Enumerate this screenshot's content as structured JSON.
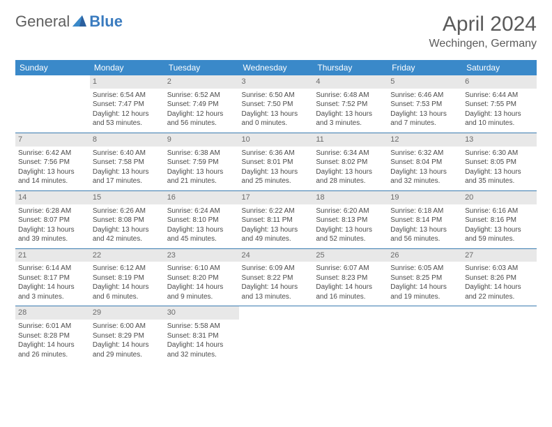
{
  "logo": {
    "text1": "General",
    "text2": "Blue"
  },
  "title": "April 2024",
  "location": "Wechingen, Germany",
  "colors": {
    "headerBg": "#3a89c9",
    "headerText": "#ffffff",
    "dayBg": "#e8e8e8",
    "rule": "#3a7bb0",
    "text": "#4a4a4a"
  },
  "dayHeaders": [
    "Sunday",
    "Monday",
    "Tuesday",
    "Wednesday",
    "Thursday",
    "Friday",
    "Saturday"
  ],
  "weeks": [
    [
      {
        "n": "",
        "sunrise": "",
        "sunset": "",
        "daylight1": "",
        "daylight2": ""
      },
      {
        "n": "1",
        "sunrise": "Sunrise: 6:54 AM",
        "sunset": "Sunset: 7:47 PM",
        "daylight1": "Daylight: 12 hours",
        "daylight2": "and 53 minutes."
      },
      {
        "n": "2",
        "sunrise": "Sunrise: 6:52 AM",
        "sunset": "Sunset: 7:49 PM",
        "daylight1": "Daylight: 12 hours",
        "daylight2": "and 56 minutes."
      },
      {
        "n": "3",
        "sunrise": "Sunrise: 6:50 AM",
        "sunset": "Sunset: 7:50 PM",
        "daylight1": "Daylight: 13 hours",
        "daylight2": "and 0 minutes."
      },
      {
        "n": "4",
        "sunrise": "Sunrise: 6:48 AM",
        "sunset": "Sunset: 7:52 PM",
        "daylight1": "Daylight: 13 hours",
        "daylight2": "and 3 minutes."
      },
      {
        "n": "5",
        "sunrise": "Sunrise: 6:46 AM",
        "sunset": "Sunset: 7:53 PM",
        "daylight1": "Daylight: 13 hours",
        "daylight2": "and 7 minutes."
      },
      {
        "n": "6",
        "sunrise": "Sunrise: 6:44 AM",
        "sunset": "Sunset: 7:55 PM",
        "daylight1": "Daylight: 13 hours",
        "daylight2": "and 10 minutes."
      }
    ],
    [
      {
        "n": "7",
        "sunrise": "Sunrise: 6:42 AM",
        "sunset": "Sunset: 7:56 PM",
        "daylight1": "Daylight: 13 hours",
        "daylight2": "and 14 minutes."
      },
      {
        "n": "8",
        "sunrise": "Sunrise: 6:40 AM",
        "sunset": "Sunset: 7:58 PM",
        "daylight1": "Daylight: 13 hours",
        "daylight2": "and 17 minutes."
      },
      {
        "n": "9",
        "sunrise": "Sunrise: 6:38 AM",
        "sunset": "Sunset: 7:59 PM",
        "daylight1": "Daylight: 13 hours",
        "daylight2": "and 21 minutes."
      },
      {
        "n": "10",
        "sunrise": "Sunrise: 6:36 AM",
        "sunset": "Sunset: 8:01 PM",
        "daylight1": "Daylight: 13 hours",
        "daylight2": "and 25 minutes."
      },
      {
        "n": "11",
        "sunrise": "Sunrise: 6:34 AM",
        "sunset": "Sunset: 8:02 PM",
        "daylight1": "Daylight: 13 hours",
        "daylight2": "and 28 minutes."
      },
      {
        "n": "12",
        "sunrise": "Sunrise: 6:32 AM",
        "sunset": "Sunset: 8:04 PM",
        "daylight1": "Daylight: 13 hours",
        "daylight2": "and 32 minutes."
      },
      {
        "n": "13",
        "sunrise": "Sunrise: 6:30 AM",
        "sunset": "Sunset: 8:05 PM",
        "daylight1": "Daylight: 13 hours",
        "daylight2": "and 35 minutes."
      }
    ],
    [
      {
        "n": "14",
        "sunrise": "Sunrise: 6:28 AM",
        "sunset": "Sunset: 8:07 PM",
        "daylight1": "Daylight: 13 hours",
        "daylight2": "and 39 minutes."
      },
      {
        "n": "15",
        "sunrise": "Sunrise: 6:26 AM",
        "sunset": "Sunset: 8:08 PM",
        "daylight1": "Daylight: 13 hours",
        "daylight2": "and 42 minutes."
      },
      {
        "n": "16",
        "sunrise": "Sunrise: 6:24 AM",
        "sunset": "Sunset: 8:10 PM",
        "daylight1": "Daylight: 13 hours",
        "daylight2": "and 45 minutes."
      },
      {
        "n": "17",
        "sunrise": "Sunrise: 6:22 AM",
        "sunset": "Sunset: 8:11 PM",
        "daylight1": "Daylight: 13 hours",
        "daylight2": "and 49 minutes."
      },
      {
        "n": "18",
        "sunrise": "Sunrise: 6:20 AM",
        "sunset": "Sunset: 8:13 PM",
        "daylight1": "Daylight: 13 hours",
        "daylight2": "and 52 minutes."
      },
      {
        "n": "19",
        "sunrise": "Sunrise: 6:18 AM",
        "sunset": "Sunset: 8:14 PM",
        "daylight1": "Daylight: 13 hours",
        "daylight2": "and 56 minutes."
      },
      {
        "n": "20",
        "sunrise": "Sunrise: 6:16 AM",
        "sunset": "Sunset: 8:16 PM",
        "daylight1": "Daylight: 13 hours",
        "daylight2": "and 59 minutes."
      }
    ],
    [
      {
        "n": "21",
        "sunrise": "Sunrise: 6:14 AM",
        "sunset": "Sunset: 8:17 PM",
        "daylight1": "Daylight: 14 hours",
        "daylight2": "and 3 minutes."
      },
      {
        "n": "22",
        "sunrise": "Sunrise: 6:12 AM",
        "sunset": "Sunset: 8:19 PM",
        "daylight1": "Daylight: 14 hours",
        "daylight2": "and 6 minutes."
      },
      {
        "n": "23",
        "sunrise": "Sunrise: 6:10 AM",
        "sunset": "Sunset: 8:20 PM",
        "daylight1": "Daylight: 14 hours",
        "daylight2": "and 9 minutes."
      },
      {
        "n": "24",
        "sunrise": "Sunrise: 6:09 AM",
        "sunset": "Sunset: 8:22 PM",
        "daylight1": "Daylight: 14 hours",
        "daylight2": "and 13 minutes."
      },
      {
        "n": "25",
        "sunrise": "Sunrise: 6:07 AM",
        "sunset": "Sunset: 8:23 PM",
        "daylight1": "Daylight: 14 hours",
        "daylight2": "and 16 minutes."
      },
      {
        "n": "26",
        "sunrise": "Sunrise: 6:05 AM",
        "sunset": "Sunset: 8:25 PM",
        "daylight1": "Daylight: 14 hours",
        "daylight2": "and 19 minutes."
      },
      {
        "n": "27",
        "sunrise": "Sunrise: 6:03 AM",
        "sunset": "Sunset: 8:26 PM",
        "daylight1": "Daylight: 14 hours",
        "daylight2": "and 22 minutes."
      }
    ],
    [
      {
        "n": "28",
        "sunrise": "Sunrise: 6:01 AM",
        "sunset": "Sunset: 8:28 PM",
        "daylight1": "Daylight: 14 hours",
        "daylight2": "and 26 minutes."
      },
      {
        "n": "29",
        "sunrise": "Sunrise: 6:00 AM",
        "sunset": "Sunset: 8:29 PM",
        "daylight1": "Daylight: 14 hours",
        "daylight2": "and 29 minutes."
      },
      {
        "n": "30",
        "sunrise": "Sunrise: 5:58 AM",
        "sunset": "Sunset: 8:31 PM",
        "daylight1": "Daylight: 14 hours",
        "daylight2": "and 32 minutes."
      },
      {
        "n": "",
        "sunrise": "",
        "sunset": "",
        "daylight1": "",
        "daylight2": ""
      },
      {
        "n": "",
        "sunrise": "",
        "sunset": "",
        "daylight1": "",
        "daylight2": ""
      },
      {
        "n": "",
        "sunrise": "",
        "sunset": "",
        "daylight1": "",
        "daylight2": ""
      },
      {
        "n": "",
        "sunrise": "",
        "sunset": "",
        "daylight1": "",
        "daylight2": ""
      }
    ]
  ]
}
